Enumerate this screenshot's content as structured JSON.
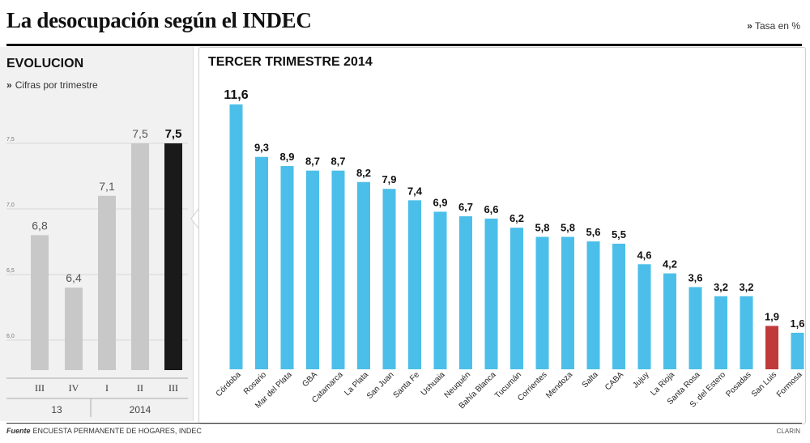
{
  "header": {
    "title": "La desocupación según el INDEC",
    "unit": "Tasa en %",
    "unit_marker": "»"
  },
  "left_panel": {
    "title": "EVOLUCION",
    "subtitle": "Cifras por trimestre",
    "subtitle_marker": "»"
  },
  "right_panel": {
    "title": "TERCER TRIMESTRE 2014"
  },
  "footer": {
    "source_label": "Fuente",
    "source_text": "ENCUESTA PERMANENTE DE HOGARES, INDEC",
    "credit": "CLARIN"
  },
  "colors": {
    "left_bar": "#c8c8c8",
    "left_bar_highlight": "#1a1a1a",
    "right_bar": "#4bbfe9",
    "right_bar_highlight": "#c0393b"
  },
  "chart_data": [
    {
      "type": "bar",
      "title": "EVOLUCION",
      "subtitle": "Cifras por trimestre",
      "categories": [
        "III",
        "IV",
        "I",
        "II",
        "III"
      ],
      "year_labels": [
        "13",
        "2014"
      ],
      "values": [
        6.8,
        6.4,
        7.1,
        7.5,
        7.5
      ],
      "value_labels": [
        "6,8",
        "6,4",
        "7,1",
        "7,5",
        "7,5"
      ],
      "highlight_index": 4,
      "yticks": [
        "7,5",
        "7,0",
        "6,5",
        "6,0"
      ],
      "ylim": [
        5.9,
        7.6
      ],
      "grid": true
    },
    {
      "type": "bar",
      "title": "TERCER TRIMESTRE 2014",
      "categories": [
        "Córdoba",
        "Rosario",
        "Mar del Plata",
        "GBA",
        "Catamarca",
        "La Plata",
        "San Juan",
        "Santa Fe",
        "Ushuaia",
        "Neuquén",
        "Bahía Blanca",
        "Tucumán",
        "Corrientes",
        "Mendoza",
        "Salta",
        "CABA",
        "Jujuy",
        "La Rioja",
        "Santa Rosa",
        "S. del Estero",
        "Posadas",
        "San Luis",
        "Formosa"
      ],
      "values": [
        11.6,
        9.3,
        8.9,
        8.7,
        8.7,
        8.2,
        7.9,
        7.4,
        6.9,
        6.7,
        6.6,
        6.2,
        5.8,
        5.8,
        5.6,
        5.5,
        4.6,
        4.2,
        3.6,
        3.2,
        3.2,
        1.9,
        1.6
      ],
      "value_labels": [
        "11,6",
        "9,3",
        "8,9",
        "8,7",
        "8,7",
        "8,2",
        "7,9",
        "7,4",
        "6,9",
        "6,7",
        "6,6",
        "6,2",
        "5,8",
        "5,8",
        "5,6",
        "5,5",
        "4,6",
        "4,2",
        "3,6",
        "3,2",
        "3,2",
        "1,9",
        "1,6"
      ],
      "highlight_index": 21,
      "ylim": [
        0,
        12
      ],
      "grid": false
    }
  ]
}
